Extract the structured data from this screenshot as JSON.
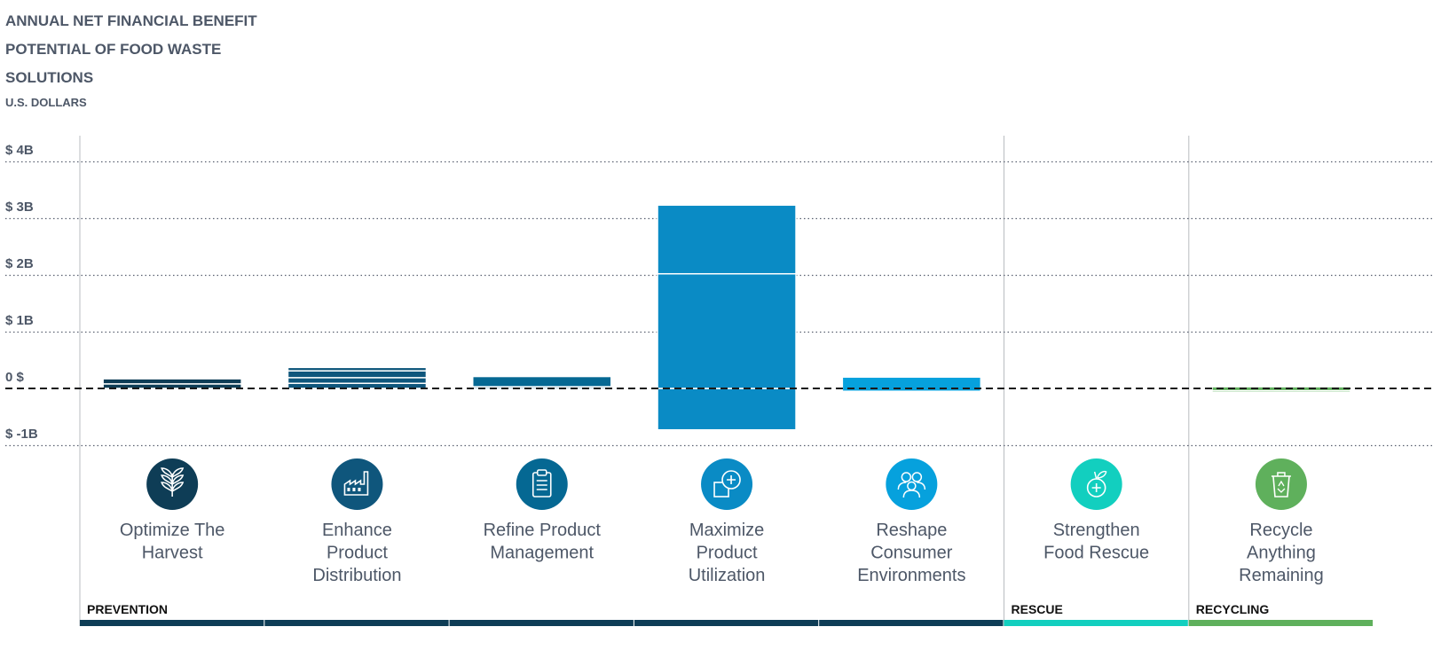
{
  "chart_data": {
    "type": "bar",
    "title_lines": [
      "ANNUAL NET FINANCIAL BENEFIT",
      "POTENTIAL OF FOOD WASTE",
      "SOLUTIONS"
    ],
    "unit_label": "U.S. DOLLARS",
    "y_ticks": [
      {
        "value": 4,
        "label": "$ 4B"
      },
      {
        "value": 3,
        "label": "$ 3B"
      },
      {
        "value": 2,
        "label": "$ 2B"
      },
      {
        "value": 1,
        "label": "$ 1B"
      },
      {
        "value": 0,
        "label": "0 $"
      },
      {
        "value": -1,
        "label": "$ -1B"
      }
    ],
    "ylim": [
      -1,
      4
    ],
    "categories": [
      {
        "label_lines": [
          "Optimize The",
          "Harvest"
        ],
        "color": "#0e3d56",
        "icon": "wheat-icon",
        "segments": [
          {
            "low": 0,
            "high": 0.08
          },
          {
            "low": 0.08,
            "high": 0.17
          }
        ]
      },
      {
        "label_lines": [
          "Enhance",
          "Product",
          "Distribution"
        ],
        "color": "#0f567c",
        "icon": "factory-icon",
        "segments": [
          {
            "low": 0,
            "high": 0.09
          },
          {
            "low": 0.09,
            "high": 0.19
          },
          {
            "low": 0.19,
            "high": 0.31
          },
          {
            "low": 0.31,
            "high": 0.37
          }
        ]
      },
      {
        "label_lines": [
          "Refine Product",
          "Management"
        ],
        "color": "#056893",
        "icon": "clipboard-icon",
        "segments": [
          {
            "low": 0,
            "high": 0.03
          },
          {
            "low": 0.03,
            "high": 0.21
          }
        ]
      },
      {
        "label_lines": [
          "Maximize",
          "Product",
          "Utilization"
        ],
        "color": "#0a8bc5",
        "icon": "product-plus-icon",
        "segments": [
          {
            "low": -0.73,
            "high": 0
          },
          {
            "low": 0,
            "high": 2.02
          },
          {
            "low": 2.02,
            "high": 3.23
          }
        ]
      },
      {
        "label_lines": [
          "Reshape",
          "Consumer",
          "Environments"
        ],
        "color": "#06a1dd",
        "icon": "people-icon",
        "segments": [
          {
            "low": -0.05,
            "high": 0.2
          }
        ]
      },
      {
        "label_lines": [
          "Strengthen",
          "Food Rescue"
        ],
        "color": "#12cfbf",
        "icon": "apple-plus-icon",
        "segments": [
          {
            "low": -0.01,
            "high": 0.01
          }
        ]
      },
      {
        "label_lines": [
          "Recycle",
          "Anything",
          "Remaining"
        ],
        "color": "#5fb05c",
        "icon": "recycle-bin-icon",
        "segments": [
          {
            "low": -0.07,
            "high": -0.04
          },
          {
            "low": -0.04,
            "high": 0.03
          }
        ]
      }
    ],
    "groups": [
      {
        "label": "PREVENTION",
        "start": 0,
        "end": 4,
        "color": "#0e3d56"
      },
      {
        "label": "RESCUE",
        "start": 5,
        "end": 5,
        "color": "#12cfbf"
      },
      {
        "label": "RECYCLING",
        "start": 6,
        "end": 6,
        "color": "#5fb05c"
      }
    ]
  }
}
